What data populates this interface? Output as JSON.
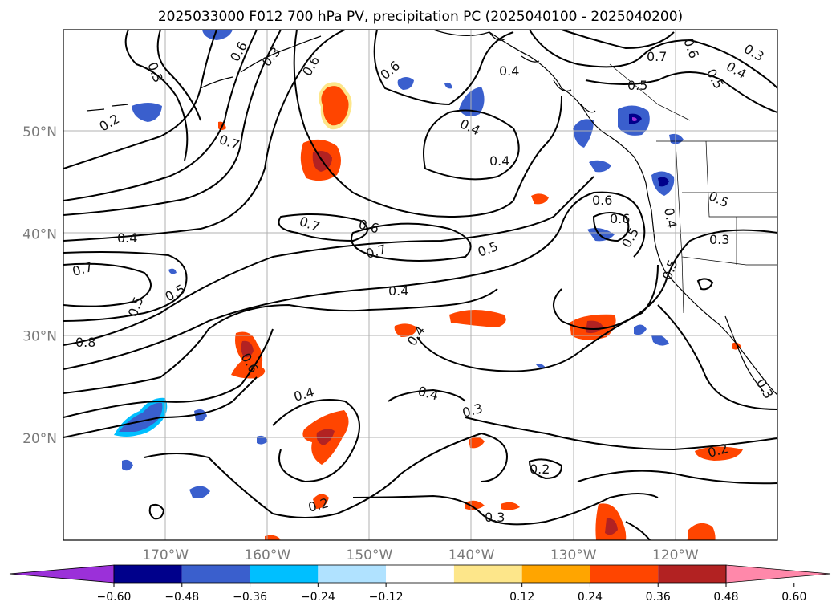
{
  "title": "2025033000 F012 700 hPa PV, precipitation PC (2025040100 - 2025040200)",
  "map": {
    "lon_range": [
      -180,
      -110
    ],
    "lat_range": [
      10,
      60
    ],
    "lon_ticks": [
      {
        "value": -170,
        "label": "170°W"
      },
      {
        "value": -160,
        "label": "160°W"
      },
      {
        "value": -150,
        "label": "150°W"
      },
      {
        "value": -140,
        "label": "140°W"
      },
      {
        "value": -130,
        "label": "130°W"
      },
      {
        "value": -120,
        "label": "120°W"
      }
    ],
    "lat_ticks": [
      {
        "value": 20,
        "label": "20°N"
      },
      {
        "value": 30,
        "label": "30°N"
      },
      {
        "value": 40,
        "label": "40°N"
      },
      {
        "value": 50,
        "label": "50°N"
      }
    ],
    "grid": true,
    "contour_labels": [
      "0.3",
      "0.2",
      "0.6",
      "0.7",
      "0.6",
      "0.4",
      "0.4",
      "0.4",
      "0.5",
      "0.6",
      "0.7",
      "0.4",
      "0.3",
      "0.5",
      "0.7",
      "0.6",
      "0.5",
      "0.4",
      "0.7",
      "0.5",
      "0.8",
      "0.6",
      "0.4",
      "0.4",
      "0.4",
      "0.3",
      "0.2",
      "0.2",
      "0.3",
      "0.2",
      "0.6",
      "0.7",
      "0.5",
      "0.4",
      "0.3",
      "0.6",
      "0.3",
      "0.4",
      "0.5",
      "0.5",
      "0.3",
      "0.5",
      "0.6"
    ]
  },
  "colorbar": {
    "ticks": [
      "−0.60",
      "−0.48",
      "−0.36",
      "−0.24",
      "−0.12",
      "0.12",
      "0.24",
      "0.36",
      "0.48",
      "0.60"
    ],
    "colors": [
      "#9b30d9",
      "#00008b",
      "#3a5fcd",
      "#00bfff",
      "#b0e2ff",
      "#ffffff",
      "#fde68a",
      "#ffa500",
      "#ff4500",
      "#b22222",
      "#ff88aa"
    ],
    "extend": "both"
  }
}
